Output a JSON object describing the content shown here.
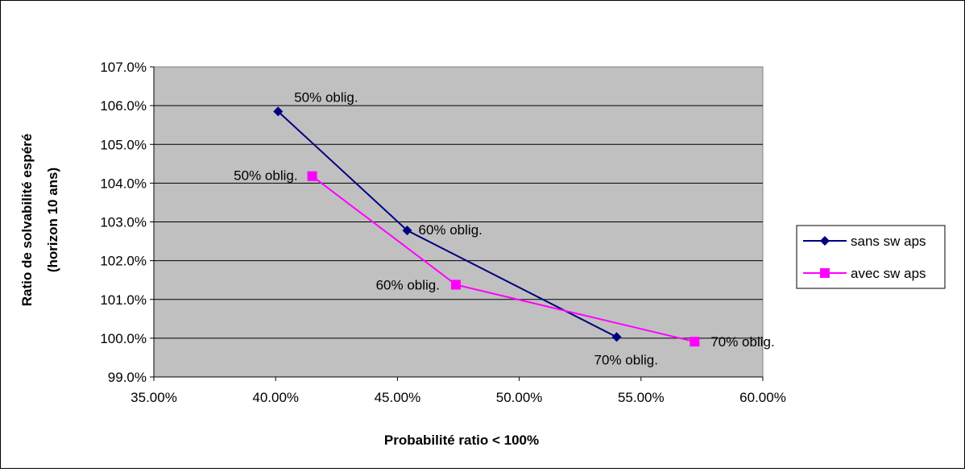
{
  "chart_data": {
    "type": "line",
    "title": "",
    "xlabel": "Probabilité ratio  < 100%",
    "ylabel": [
      "Ratio de solvabilité espéré",
      "(horizon 10 ans)"
    ],
    "xlim": [
      0.35,
      0.6
    ],
    "ylim": [
      0.99,
      1.07
    ],
    "x_ticks": [
      0.35,
      0.4,
      0.45,
      0.5,
      0.55,
      0.6
    ],
    "x_tick_labels": [
      "35.00%",
      "40.00%",
      "45.00%",
      "50.00%",
      "55.00%",
      "60.00%"
    ],
    "y_ticks": [
      0.99,
      1.0,
      1.01,
      1.02,
      1.03,
      1.04,
      1.05,
      1.06,
      1.07
    ],
    "y_tick_labels": [
      "99.0%",
      "100.0%",
      "101.0%",
      "102.0%",
      "103.0%",
      "104.0%",
      "105.0%",
      "106.0%",
      "107.0%"
    ],
    "grid": "horizontal",
    "plot_background": "#c0c0c0",
    "legend_position": "right",
    "series": [
      {
        "name": "sans sw aps",
        "color": "#000080",
        "marker": "diamond",
        "points": [
          {
            "x": 0.401,
            "y": 1.0585,
            "label": "50% oblig."
          },
          {
            "x": 0.454,
            "y": 1.0278,
            "label": "60% oblig."
          },
          {
            "x": 0.54,
            "y": 1.0003,
            "label": "70% oblig."
          }
        ]
      },
      {
        "name": "avec sw aps",
        "color": "#ff00ff",
        "marker": "square",
        "points": [
          {
            "x": 0.415,
            "y": 1.0418,
            "label": "50% oblig."
          },
          {
            "x": 0.474,
            "y": 1.0138,
            "label": "60% oblig."
          },
          {
            "x": 0.572,
            "y": 0.9991,
            "label": "70% oblig."
          }
        ]
      }
    ]
  }
}
